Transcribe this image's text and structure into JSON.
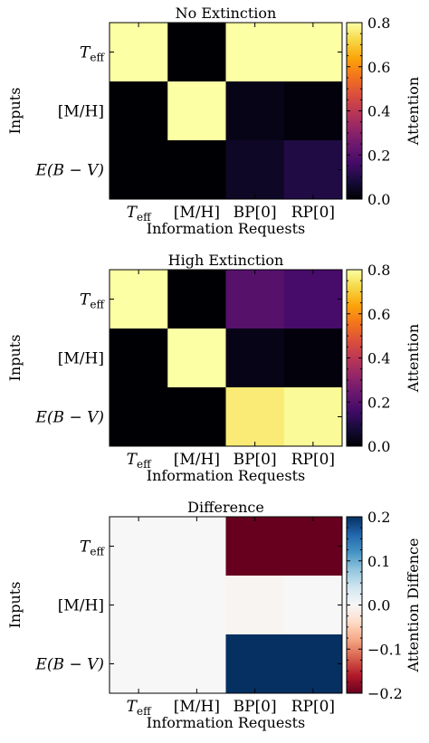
{
  "chart_data": [
    {
      "type": "heatmap",
      "title": "No Extinction",
      "xlabel": "Information Requests",
      "ylabel": "Inputs",
      "colorbar_label": "Attention",
      "colormap": "inferno",
      "vmin": 0.0,
      "vmax": 0.8,
      "colorbar_ticks": [
        "0.0",
        "0.2",
        "0.4",
        "0.6",
        "0.8"
      ],
      "x_categories": [
        "Teff",
        "[M/H]",
        "BP[0]",
        "RP[0]"
      ],
      "y_categories": [
        "Teff",
        "[M/H]",
        "E(B-V)"
      ],
      "values": [
        [
          0.8,
          0.0,
          0.8,
          0.8
        ],
        [
          0.0,
          0.8,
          0.03,
          0.01
        ],
        [
          0.0,
          0.0,
          0.05,
          0.1
        ]
      ]
    },
    {
      "type": "heatmap",
      "title": "High Extinction",
      "xlabel": "Information Requests",
      "ylabel": "Inputs",
      "colorbar_label": "Attention",
      "colormap": "inferno",
      "vmin": 0.0,
      "vmax": 0.8,
      "colorbar_ticks": [
        "0.0",
        "0.2",
        "0.4",
        "0.6",
        "0.8"
      ],
      "x_categories": [
        "Teff",
        "[M/H]",
        "BP[0]",
        "RP[0]"
      ],
      "y_categories": [
        "Teff",
        "[M/H]",
        "E(B-V)"
      ],
      "values": [
        [
          0.8,
          0.0,
          0.2,
          0.17
        ],
        [
          0.0,
          0.8,
          0.03,
          0.01
        ],
        [
          0.0,
          0.0,
          0.76,
          0.79
        ]
      ]
    },
    {
      "type": "heatmap",
      "title": "Difference",
      "xlabel": "Information Requests",
      "ylabel": "Inputs",
      "colorbar_label": "Attention Diffence",
      "colormap": "RdBu",
      "vmin": -0.2,
      "vmax": 0.2,
      "colorbar_ticks": [
        "−0.2",
        "−0.1",
        "0.0",
        "0.1",
        "0.2"
      ],
      "x_categories": [
        "Teff",
        "[M/H]",
        "BP[0]",
        "RP[0]"
      ],
      "y_categories": [
        "Teff",
        "[M/H]",
        "E(B-V)"
      ],
      "values": [
        [
          0.0,
          0.0,
          -0.2,
          -0.2
        ],
        [
          0.0,
          0.0,
          -0.005,
          0.0
        ],
        [
          0.0,
          0.0,
          0.2,
          0.2
        ]
      ]
    }
  ]
}
